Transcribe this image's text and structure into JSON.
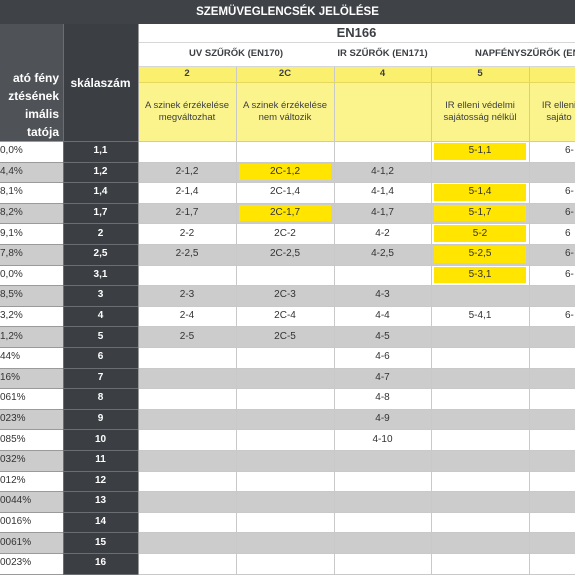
{
  "title": "SZEMÜVEGLENCSÉK JELÖLÉSE",
  "left_header": [
    "ató fény",
    "ztésének",
    "imális",
    "tatója"
  ],
  "scale_header": "skálaszám",
  "standard": "EN166",
  "groups": [
    {
      "label": "UV SZŰRŐK (EN170)"
    },
    {
      "label": "IR SZŰRŐK (EN171)"
    },
    {
      "label": "NAPFÉNYSZŰRŐK (EN"
    }
  ],
  "columns": [
    {
      "number": "2",
      "description": "A szinek érzékelése megváltozhat"
    },
    {
      "number": "2C",
      "description": "A szinek érzékelése nem változik"
    },
    {
      "number": "4",
      "description": ""
    },
    {
      "number": "5",
      "description": "IR elleni védelmi sajátosság nélkül"
    },
    {
      "number": "",
      "description": "IR elleni sajáto"
    }
  ],
  "colors": {
    "banner": "#3f4347",
    "left_column": "#4f5357",
    "scale_column": "#3b3f43",
    "header_yellow": "#fbf06e",
    "highlight_yellow": "#ffe500",
    "stripe_gray": "#cccccc"
  },
  "rows": [
    {
      "transmittance": "0,0%",
      "scale": "1,1",
      "cells": [
        "",
        "",
        "",
        "5-1,1",
        "6-"
      ],
      "highlight": [
        false,
        false,
        false,
        true,
        false
      ]
    },
    {
      "transmittance": "4,4%",
      "scale": "1,2",
      "cells": [
        "2-1,2",
        "2C-1,2",
        "4-1,2",
        "",
        ""
      ],
      "highlight": [
        false,
        true,
        false,
        false,
        false
      ]
    },
    {
      "transmittance": "8,1%",
      "scale": "1,4",
      "cells": [
        "2-1,4",
        "2C-1,4",
        "4-1,4",
        "5-1,4",
        "6-"
      ],
      "highlight": [
        false,
        false,
        false,
        true,
        false
      ]
    },
    {
      "transmittance": "8,2%",
      "scale": "1,7",
      "cells": [
        "2-1,7",
        "2C-1,7",
        "4-1,7",
        "5-1,7",
        "6-"
      ],
      "highlight": [
        false,
        true,
        false,
        true,
        false
      ]
    },
    {
      "transmittance": "9,1%",
      "scale": "2",
      "cells": [
        "2-2",
        "2C-2",
        "4-2",
        "5-2",
        "6"
      ],
      "highlight": [
        false,
        false,
        false,
        true,
        false
      ]
    },
    {
      "transmittance": "7,8%",
      "scale": "2,5",
      "cells": [
        "2-2,5",
        "2C-2,5",
        "4-2,5",
        "5-2,5",
        "6-"
      ],
      "highlight": [
        false,
        false,
        false,
        true,
        false
      ]
    },
    {
      "transmittance": "0,0%",
      "scale": "3,1",
      "cells": [
        "",
        "",
        "",
        "5-3,1",
        "6-"
      ],
      "highlight": [
        false,
        false,
        false,
        true,
        false
      ]
    },
    {
      "transmittance": "8,5%",
      "scale": "3",
      "cells": [
        "2-3",
        "2C-3",
        "4-3",
        "",
        ""
      ],
      "highlight": [
        false,
        false,
        false,
        false,
        false
      ]
    },
    {
      "transmittance": "3,2%",
      "scale": "4",
      "cells": [
        "2-4",
        "2C-4",
        "4-4",
        "5-4,1",
        "6-"
      ],
      "highlight": [
        false,
        false,
        false,
        false,
        false
      ]
    },
    {
      "transmittance": "1,2%",
      "scale": "5",
      "cells": [
        "2-5",
        "2C-5",
        "4-5",
        "",
        ""
      ],
      "highlight": [
        false,
        false,
        false,
        false,
        false
      ]
    },
    {
      "transmittance": "44%",
      "scale": "6",
      "cells": [
        "",
        "",
        "4-6",
        "",
        ""
      ],
      "highlight": [
        false,
        false,
        false,
        false,
        false
      ]
    },
    {
      "transmittance": "16%",
      "scale": "7",
      "cells": [
        "",
        "",
        "4-7",
        "",
        ""
      ],
      "highlight": [
        false,
        false,
        false,
        false,
        false
      ]
    },
    {
      "transmittance": "061%",
      "scale": "8",
      "cells": [
        "",
        "",
        "4-8",
        "",
        ""
      ],
      "highlight": [
        false,
        false,
        false,
        false,
        false
      ]
    },
    {
      "transmittance": "023%",
      "scale": "9",
      "cells": [
        "",
        "",
        "4-9",
        "",
        ""
      ],
      "highlight": [
        false,
        false,
        false,
        false,
        false
      ]
    },
    {
      "transmittance": "085%",
      "scale": "10",
      "cells": [
        "",
        "",
        "4-10",
        "",
        ""
      ],
      "highlight": [
        false,
        false,
        false,
        false,
        false
      ]
    },
    {
      "transmittance": "032%",
      "scale": "11",
      "cells": [
        "",
        "",
        "",
        "",
        ""
      ],
      "highlight": [
        false,
        false,
        false,
        false,
        false
      ]
    },
    {
      "transmittance": "012%",
      "scale": "12",
      "cells": [
        "",
        "",
        "",
        "",
        ""
      ],
      "highlight": [
        false,
        false,
        false,
        false,
        false
      ]
    },
    {
      "transmittance": "0044%",
      "scale": "13",
      "cells": [
        "",
        "",
        "",
        "",
        ""
      ],
      "highlight": [
        false,
        false,
        false,
        false,
        false
      ]
    },
    {
      "transmittance": "0016%",
      "scale": "14",
      "cells": [
        "",
        "",
        "",
        "",
        ""
      ],
      "highlight": [
        false,
        false,
        false,
        false,
        false
      ]
    },
    {
      "transmittance": "0061%",
      "scale": "15",
      "cells": [
        "",
        "",
        "",
        "",
        ""
      ],
      "highlight": [
        false,
        false,
        false,
        false,
        false
      ]
    },
    {
      "transmittance": "0023%",
      "scale": "16",
      "cells": [
        "",
        "",
        "",
        "",
        ""
      ],
      "highlight": [
        false,
        false,
        false,
        false,
        false
      ]
    }
  ]
}
